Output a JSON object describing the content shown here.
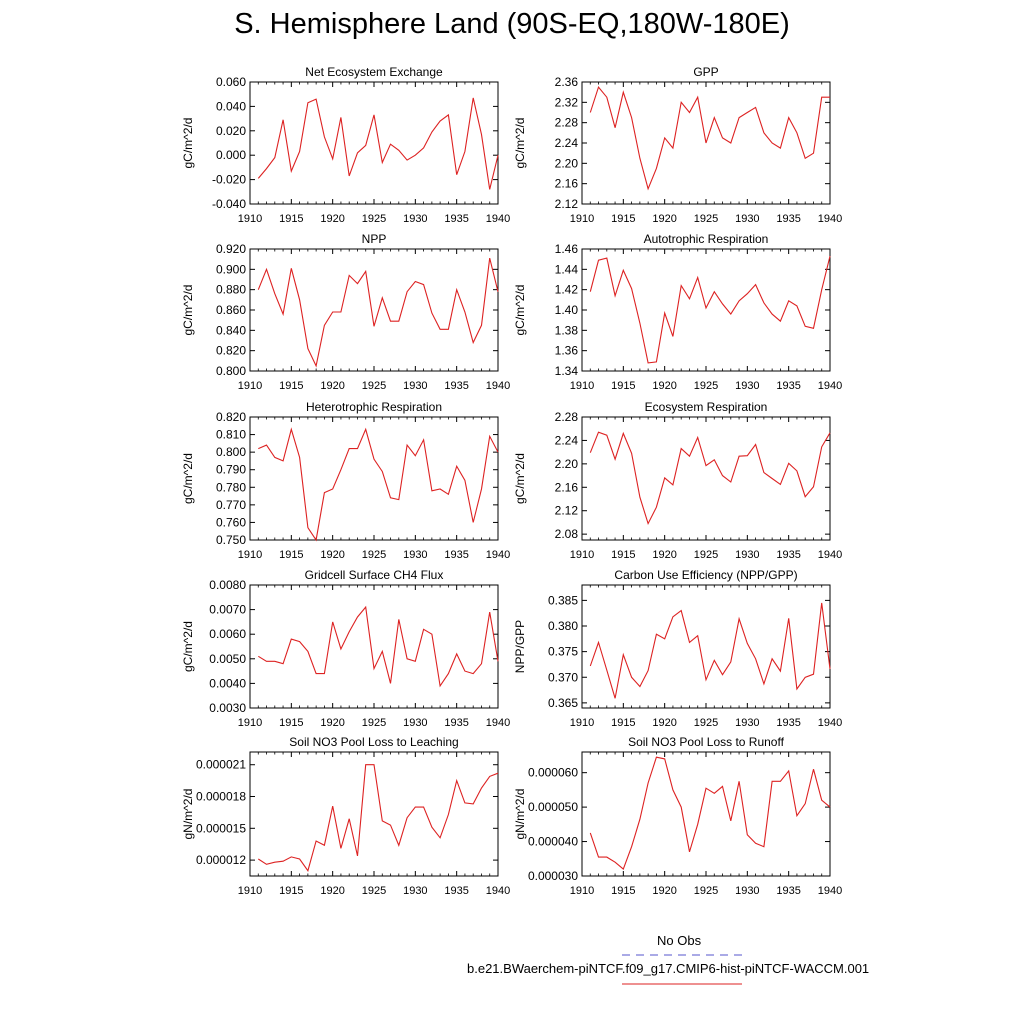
{
  "page_title": "S. Hemisphere Land (90S-EQ,180W-180E)",
  "legend": {
    "entries": [
      {
        "label": "No Obs",
        "color": "#5555cc",
        "style": "dashed"
      },
      {
        "label": "b.e21.BWaerchem-piNTCF.f09_g17.CMIP6-hist-piNTCF-WACCM.001",
        "color": "#dd2222",
        "style": "solid"
      }
    ]
  },
  "chart_data": [
    {
      "type": "line",
      "title": "Net Ecosystem Exchange",
      "ylabel": "gC/m^2/d",
      "xlim": [
        1910,
        1940
      ],
      "ylim": [
        -0.04,
        0.06
      ],
      "xticks": [
        "1910",
        "1915",
        "1920",
        "1925",
        "1930",
        "1935",
        "1940"
      ],
      "yticks": [
        "-0.040",
        "-0.020",
        "0.000",
        "0.020",
        "0.040",
        "0.060"
      ],
      "x": [
        1911,
        1912,
        1913,
        1914,
        1915,
        1916,
        1917,
        1918,
        1919,
        1920,
        1921,
        1922,
        1923,
        1924,
        1925,
        1926,
        1927,
        1928,
        1929,
        1930,
        1931,
        1932,
        1933,
        1934,
        1935,
        1936,
        1937,
        1938,
        1939,
        1940
      ],
      "y": [
        -0.019,
        -0.011,
        -0.002,
        0.029,
        -0.013,
        0.003,
        0.043,
        0.046,
        0.015,
        -0.003,
        0.031,
        -0.017,
        0.002,
        0.008,
        0.033,
        -0.006,
        0.009,
        0.004,
        -0.004,
        0.0,
        0.006,
        0.019,
        0.028,
        0.033,
        -0.016,
        0.003,
        0.047,
        0.017,
        -0.028,
        0.0
      ],
      "color": "#dd2222"
    },
    {
      "type": "line",
      "title": "GPP",
      "ylabel": "gC/m^2/d",
      "xlim": [
        1910,
        1940
      ],
      "ylim": [
        2.12,
        2.36
      ],
      "xticks": [
        "1910",
        "1915",
        "1920",
        "1925",
        "1930",
        "1935",
        "1940"
      ],
      "yticks": [
        "2.12",
        "2.16",
        "2.20",
        "2.24",
        "2.28",
        "2.32",
        "2.36"
      ],
      "x": [
        1911,
        1912,
        1913,
        1914,
        1915,
        1916,
        1917,
        1918,
        1919,
        1920,
        1921,
        1922,
        1923,
        1924,
        1925,
        1926,
        1927,
        1928,
        1929,
        1930,
        1931,
        1932,
        1933,
        1934,
        1935,
        1936,
        1937,
        1938,
        1939,
        1940
      ],
      "y": [
        2.3,
        2.35,
        2.33,
        2.27,
        2.34,
        2.29,
        2.21,
        2.15,
        2.19,
        2.25,
        2.23,
        2.32,
        2.3,
        2.33,
        2.24,
        2.29,
        2.25,
        2.24,
        2.29,
        2.3,
        2.31,
        2.26,
        2.24,
        2.23,
        2.29,
        2.26,
        2.21,
        2.22,
        2.33,
        2.33
      ],
      "color": "#dd2222"
    },
    {
      "type": "line",
      "title": "NPP",
      "ylabel": "gC/m^2/d",
      "xlim": [
        1910,
        1940
      ],
      "ylim": [
        0.8,
        0.92
      ],
      "xticks": [
        "1910",
        "1915",
        "1920",
        "1925",
        "1930",
        "1935",
        "1940"
      ],
      "yticks": [
        "0.800",
        "0.820",
        "0.840",
        "0.860",
        "0.880",
        "0.900",
        "0.920"
      ],
      "x": [
        1911,
        1912,
        1913,
        1914,
        1915,
        1916,
        1917,
        1918,
        1919,
        1920,
        1921,
        1922,
        1923,
        1924,
        1925,
        1926,
        1927,
        1928,
        1929,
        1930,
        1931,
        1932,
        1933,
        1934,
        1935,
        1936,
        1937,
        1938,
        1939,
        1940
      ],
      "y": [
        0.88,
        0.9,
        0.876,
        0.856,
        0.901,
        0.87,
        0.822,
        0.805,
        0.845,
        0.858,
        0.858,
        0.894,
        0.886,
        0.898,
        0.844,
        0.872,
        0.849,
        0.849,
        0.878,
        0.888,
        0.885,
        0.857,
        0.841,
        0.841,
        0.88,
        0.858,
        0.828,
        0.845,
        0.911,
        0.878
      ],
      "color": "#dd2222"
    },
    {
      "type": "line",
      "title": "Autotrophic Respiration",
      "ylabel": "gC/m^2/d",
      "xlim": [
        1910,
        1940
      ],
      "ylim": [
        1.34,
        1.46
      ],
      "xticks": [
        "1910",
        "1915",
        "1920",
        "1925",
        "1930",
        "1935",
        "1940"
      ],
      "yticks": [
        "1.34",
        "1.36",
        "1.38",
        "1.40",
        "1.42",
        "1.44",
        "1.46"
      ],
      "x": [
        1911,
        1912,
        1913,
        1914,
        1915,
        1916,
        1917,
        1918,
        1919,
        1920,
        1921,
        1922,
        1923,
        1924,
        1925,
        1926,
        1927,
        1928,
        1929,
        1930,
        1931,
        1932,
        1933,
        1934,
        1935,
        1936,
        1937,
        1938,
        1939,
        1940
      ],
      "y": [
        1.418,
        1.449,
        1.451,
        1.414,
        1.439,
        1.421,
        1.387,
        1.348,
        1.349,
        1.397,
        1.374,
        1.424,
        1.411,
        1.432,
        1.402,
        1.418,
        1.406,
        1.396,
        1.409,
        1.416,
        1.425,
        1.407,
        1.396,
        1.389,
        1.409,
        1.404,
        1.384,
        1.382,
        1.42,
        1.453
      ],
      "color": "#dd2222"
    },
    {
      "type": "line",
      "title": "Heterotrophic Respiration",
      "ylabel": "gC/m^2/d",
      "xlim": [
        1910,
        1940
      ],
      "ylim": [
        0.75,
        0.82
      ],
      "xticks": [
        "1910",
        "1915",
        "1920",
        "1925",
        "1930",
        "1935",
        "1940"
      ],
      "yticks": [
        "0.750",
        "0.760",
        "0.770",
        "0.780",
        "0.790",
        "0.800",
        "0.810",
        "0.820"
      ],
      "x": [
        1911,
        1912,
        1913,
        1914,
        1915,
        1916,
        1917,
        1918,
        1919,
        1920,
        1921,
        1922,
        1923,
        1924,
        1925,
        1926,
        1927,
        1928,
        1929,
        1930,
        1931,
        1932,
        1933,
        1934,
        1935,
        1936,
        1937,
        1938,
        1939,
        1940
      ],
      "y": [
        0.802,
        0.804,
        0.797,
        0.795,
        0.813,
        0.797,
        0.757,
        0.75,
        0.777,
        0.779,
        0.79,
        0.802,
        0.802,
        0.813,
        0.796,
        0.789,
        0.774,
        0.773,
        0.804,
        0.798,
        0.807,
        0.778,
        0.779,
        0.776,
        0.792,
        0.784,
        0.76,
        0.779,
        0.809,
        0.8
      ],
      "color": "#dd2222"
    },
    {
      "type": "line",
      "title": "Ecosystem Respiration",
      "ylabel": "gC/m^2/d",
      "xlim": [
        1910,
        1940
      ],
      "ylim": [
        2.07,
        2.28
      ],
      "xticks": [
        "1910",
        "1915",
        "1920",
        "1925",
        "1930",
        "1935",
        "1940"
      ],
      "yticks": [
        "2.08",
        "2.12",
        "2.16",
        "2.20",
        "2.24",
        "2.28"
      ],
      "x": [
        1911,
        1912,
        1913,
        1914,
        1915,
        1916,
        1917,
        1918,
        1919,
        1920,
        1921,
        1922,
        1923,
        1924,
        1925,
        1926,
        1927,
        1928,
        1929,
        1930,
        1931,
        1932,
        1933,
        1934,
        1935,
        1936,
        1937,
        1938,
        1939,
        1940
      ],
      "y": [
        2.219,
        2.254,
        2.249,
        2.208,
        2.252,
        2.218,
        2.143,
        2.098,
        2.126,
        2.176,
        2.164,
        2.226,
        2.213,
        2.245,
        2.197,
        2.207,
        2.18,
        2.169,
        2.213,
        2.214,
        2.233,
        2.185,
        2.175,
        2.165,
        2.201,
        2.188,
        2.144,
        2.161,
        2.229,
        2.253
      ],
      "color": "#dd2222"
    },
    {
      "type": "line",
      "title": "Gridcell Surface CH4 Flux",
      "ylabel": "gC/m^2/d",
      "xlim": [
        1910,
        1940
      ],
      "ylim": [
        0.003,
        0.008
      ],
      "xticks": [
        "1910",
        "1915",
        "1920",
        "1925",
        "1930",
        "1935",
        "1940"
      ],
      "yticks": [
        "0.0030",
        "0.0040",
        "0.0050",
        "0.0060",
        "0.0070",
        "0.0080"
      ],
      "x": [
        1911,
        1912,
        1913,
        1914,
        1915,
        1916,
        1917,
        1918,
        1919,
        1920,
        1921,
        1922,
        1923,
        1924,
        1925,
        1926,
        1927,
        1928,
        1929,
        1930,
        1931,
        1932,
        1933,
        1934,
        1935,
        1936,
        1937,
        1938,
        1939,
        1940
      ],
      "y": [
        0.0051,
        0.0049,
        0.0049,
        0.0048,
        0.0058,
        0.0057,
        0.0053,
        0.0044,
        0.0044,
        0.0065,
        0.0054,
        0.0061,
        0.0067,
        0.0071,
        0.0046,
        0.0053,
        0.004,
        0.0066,
        0.005,
        0.0049,
        0.0062,
        0.006,
        0.0039,
        0.0044,
        0.0052,
        0.0045,
        0.0044,
        0.0048,
        0.0069,
        0.0049
      ],
      "color": "#dd2222"
    },
    {
      "type": "line",
      "title": "Carbon Use Efficiency (NPP/GPP)",
      "ylabel": "NPP/GPP",
      "xlim": [
        1910,
        1940
      ],
      "ylim": [
        0.364,
        0.388
      ],
      "xticks": [
        "1910",
        "1915",
        "1920",
        "1925",
        "1930",
        "1935",
        "1940"
      ],
      "yticks": [
        "0.365",
        "0.370",
        "0.375",
        "0.380",
        "0.385"
      ],
      "x": [
        1911,
        1912,
        1913,
        1914,
        1915,
        1916,
        1917,
        1918,
        1919,
        1920,
        1921,
        1922,
        1923,
        1924,
        1925,
        1926,
        1927,
        1928,
        1929,
        1930,
        1931,
        1932,
        1933,
        1934,
        1935,
        1936,
        1937,
        1938,
        1939,
        1940
      ],
      "y": [
        0.3722,
        0.3768,
        0.3714,
        0.3659,
        0.3744,
        0.37,
        0.3682,
        0.3713,
        0.3784,
        0.3775,
        0.3818,
        0.383,
        0.3768,
        0.3781,
        0.3695,
        0.3733,
        0.3705,
        0.373,
        0.3814,
        0.3766,
        0.3736,
        0.3687,
        0.3736,
        0.3712,
        0.3815,
        0.3677,
        0.37,
        0.3706,
        0.3845,
        0.3716
      ],
      "color": "#dd2222"
    },
    {
      "type": "line",
      "title": "Soil NO3 Pool Loss to Leaching",
      "ylabel": "gN/m^2/d",
      "xlim": [
        1910,
        1940
      ],
      "ylim": [
        1.05e-05,
        2.22e-05
      ],
      "xticks": [
        "1910",
        "1915",
        "1920",
        "1925",
        "1930",
        "1935",
        "1940"
      ],
      "yticks": [
        "0.000012",
        "0.000015",
        "0.000018",
        "0.000021"
      ],
      "ytick_values": [
        1.2e-05,
        1.5e-05,
        1.8e-05,
        2.1e-05
      ],
      "x": [
        1911,
        1912,
        1913,
        1914,
        1915,
        1916,
        1917,
        1918,
        1919,
        1920,
        1921,
        1922,
        1923,
        1924,
        1925,
        1926,
        1927,
        1928,
        1929,
        1930,
        1931,
        1932,
        1933,
        1934,
        1935,
        1936,
        1937,
        1938,
        1939,
        1940
      ],
      "y": [
        1.21e-05,
        1.16e-05,
        1.18e-05,
        1.19e-05,
        1.23e-05,
        1.21e-05,
        1.1e-05,
        1.38e-05,
        1.34e-05,
        1.71e-05,
        1.31e-05,
        1.59e-05,
        1.24e-05,
        2.1e-05,
        2.1e-05,
        1.57e-05,
        1.53e-05,
        1.34e-05,
        1.6e-05,
        1.7e-05,
        1.7e-05,
        1.51e-05,
        1.41e-05,
        1.63e-05,
        1.95e-05,
        1.74e-05,
        1.73e-05,
        1.88e-05,
        1.99e-05,
        2.02e-05
      ],
      "color": "#dd2222"
    },
    {
      "type": "line",
      "title": "Soil NO3 Pool Loss to Runoff",
      "ylabel": "gN/m^2/d",
      "xlim": [
        1910,
        1940
      ],
      "ylim": [
        3e-05,
        6.6e-05
      ],
      "xticks": [
        "1910",
        "1915",
        "1920",
        "1925",
        "1930",
        "1935",
        "1940"
      ],
      "yticks": [
        "0.000030",
        "0.000040",
        "0.000050",
        "0.000060"
      ],
      "ytick_values": [
        3e-05,
        4e-05,
        5e-05,
        6e-05
      ],
      "x": [
        1911,
        1912,
        1913,
        1914,
        1915,
        1916,
        1917,
        1918,
        1919,
        1920,
        1921,
        1922,
        1923,
        1924,
        1925,
        1926,
        1927,
        1928,
        1929,
        1930,
        1931,
        1932,
        1933,
        1934,
        1935,
        1936,
        1937,
        1938,
        1939,
        1940
      ],
      "y": [
        4.25e-05,
        3.55e-05,
        3.55e-05,
        3.4e-05,
        3.2e-05,
        3.85e-05,
        4.65e-05,
        5.7e-05,
        6.45e-05,
        6.4e-05,
        5.5e-05,
        5e-05,
        3.7e-05,
        4.5e-05,
        5.55e-05,
        5.4e-05,
        5.6e-05,
        4.6e-05,
        5.75e-05,
        4.2e-05,
        3.95e-05,
        3.85e-05,
        5.75e-05,
        5.75e-05,
        6.05e-05,
        4.75e-05,
        5.1e-05,
        6.1e-05,
        5.2e-05,
        5e-05
      ],
      "color": "#dd2222"
    }
  ]
}
